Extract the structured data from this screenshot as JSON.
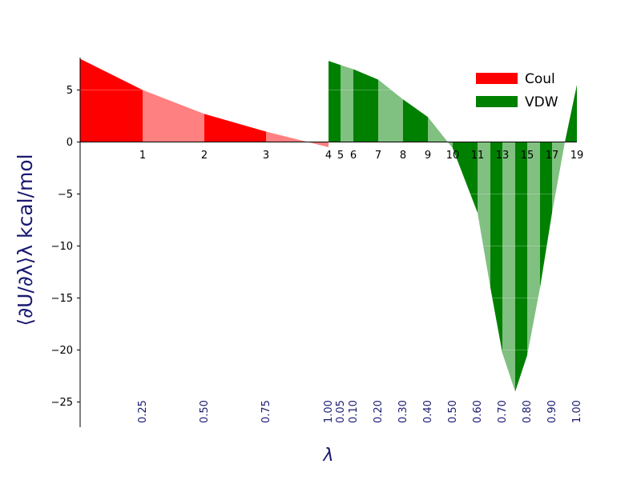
{
  "chart_data": {
    "type": "area",
    "ylabel": "⟨∂U/∂λ⟩λ kcal/mol",
    "xlabel": "λ",
    "ylim": [
      -27.5,
      8
    ],
    "yticks": [
      5,
      0,
      -5,
      -10,
      -15,
      -20,
      -25
    ],
    "grid": false,
    "legend_position": "top-right",
    "x": [
      0,
      1,
      2,
      3,
      4,
      4,
      5,
      6,
      7,
      8,
      9,
      10,
      11,
      12,
      13,
      14,
      15,
      16,
      17,
      18,
      19
    ],
    "window_labels": [
      "1",
      "2",
      "3",
      "4",
      "5",
      "6",
      "7",
      "8",
      "9",
      "10",
      "11",
      "13",
      "15",
      "17",
      "19"
    ],
    "lambda_labels": [
      "0.25",
      "0.50",
      "0.75",
      "1.00",
      "0.05",
      "0.10",
      "0.20",
      "0.30",
      "0.40",
      "0.50",
      "0.60",
      "0.70",
      "0.80",
      "0.90",
      "1.00"
    ],
    "series": [
      {
        "name": "Coul",
        "color": "#ff0000",
        "x": [
          0,
          1,
          2,
          3,
          4
        ],
        "values": [
          8.0,
          5.0,
          2.7,
          1.0,
          -0.5
        ]
      },
      {
        "name": "VDW",
        "color": "#008000",
        "x": [
          4,
          4.5,
          5,
          6,
          7,
          8,
          8.7,
          9,
          10,
          10.5,
          11,
          11.5,
          12,
          12.5,
          13,
          13.5,
          14,
          14.5,
          15,
          15.5,
          16,
          16.5,
          17,
          17.5,
          18,
          18.5,
          19
        ],
        "values": [
          7.8,
          7.4,
          7.0,
          6.0,
          4.1,
          2.4,
          0.0,
          -1.5,
          -6.8,
          -14.0,
          -20.3,
          -24.0,
          -20.5,
          -14.0,
          -6.8,
          -2.0,
          0.0,
          1.5,
          5.5,
          5.5,
          5.5,
          5.5,
          5.5,
          5.5,
          5.5,
          5.5,
          5.5
        ]
      }
    ],
    "legend": [
      "Coul",
      "VDW"
    ]
  }
}
